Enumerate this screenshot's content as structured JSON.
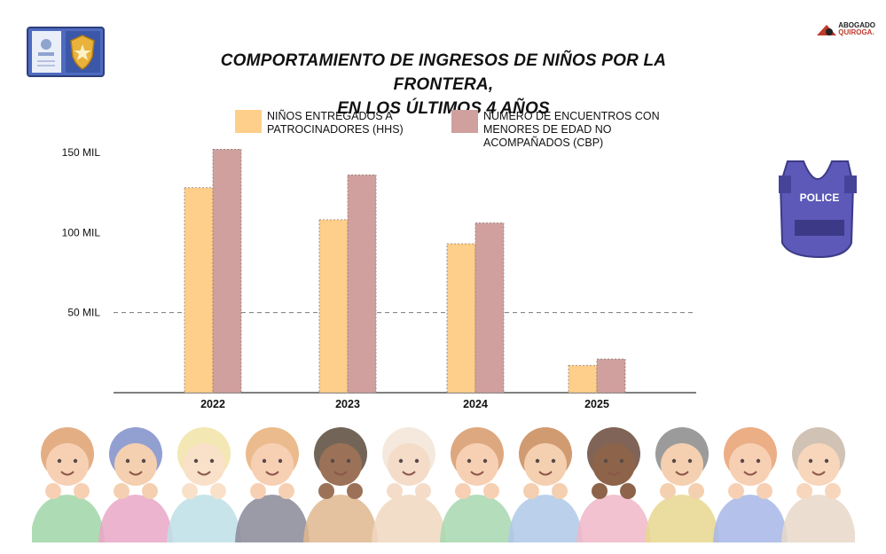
{
  "title_line1": "COMPORTAMIENTO DE INGRESOS DE NIÑOS POR LA FRONTERA,",
  "title_line2": "EN LOS ÚLTIMOS 4 AÑOS",
  "logo": {
    "line1": "ABOGADO",
    "line2": "QUIROGA."
  },
  "vest_label": "POLICE",
  "colors": {
    "hhs": "#fecf8a",
    "cbp": "#d0a09f",
    "grid": "#777777"
  },
  "chart_data": {
    "type": "bar",
    "categories": [
      "2022",
      "2023",
      "2024",
      "2025"
    ],
    "series": [
      {
        "name": "NIÑOS ENTREGADOS A PATROCINADORES (HHS)",
        "values": [
          128000,
          108000,
          93000,
          17000
        ]
      },
      {
        "name": "NÚMERO DE ENCUENTROS CON MENORES DE EDAD NO ACOMPAÑADOS (CBP)",
        "values": [
          152000,
          136000,
          106000,
          21000
        ]
      }
    ],
    "yticks": [
      {
        "value": 50000,
        "label": "50 MIL"
      },
      {
        "value": 100000,
        "label": "100 MIL"
      },
      {
        "value": 150000,
        "label": "150 MIL"
      }
    ],
    "ylim": [
      0,
      152000
    ],
    "legend_position": "top",
    "grid": "dashed line at 50 MIL"
  }
}
